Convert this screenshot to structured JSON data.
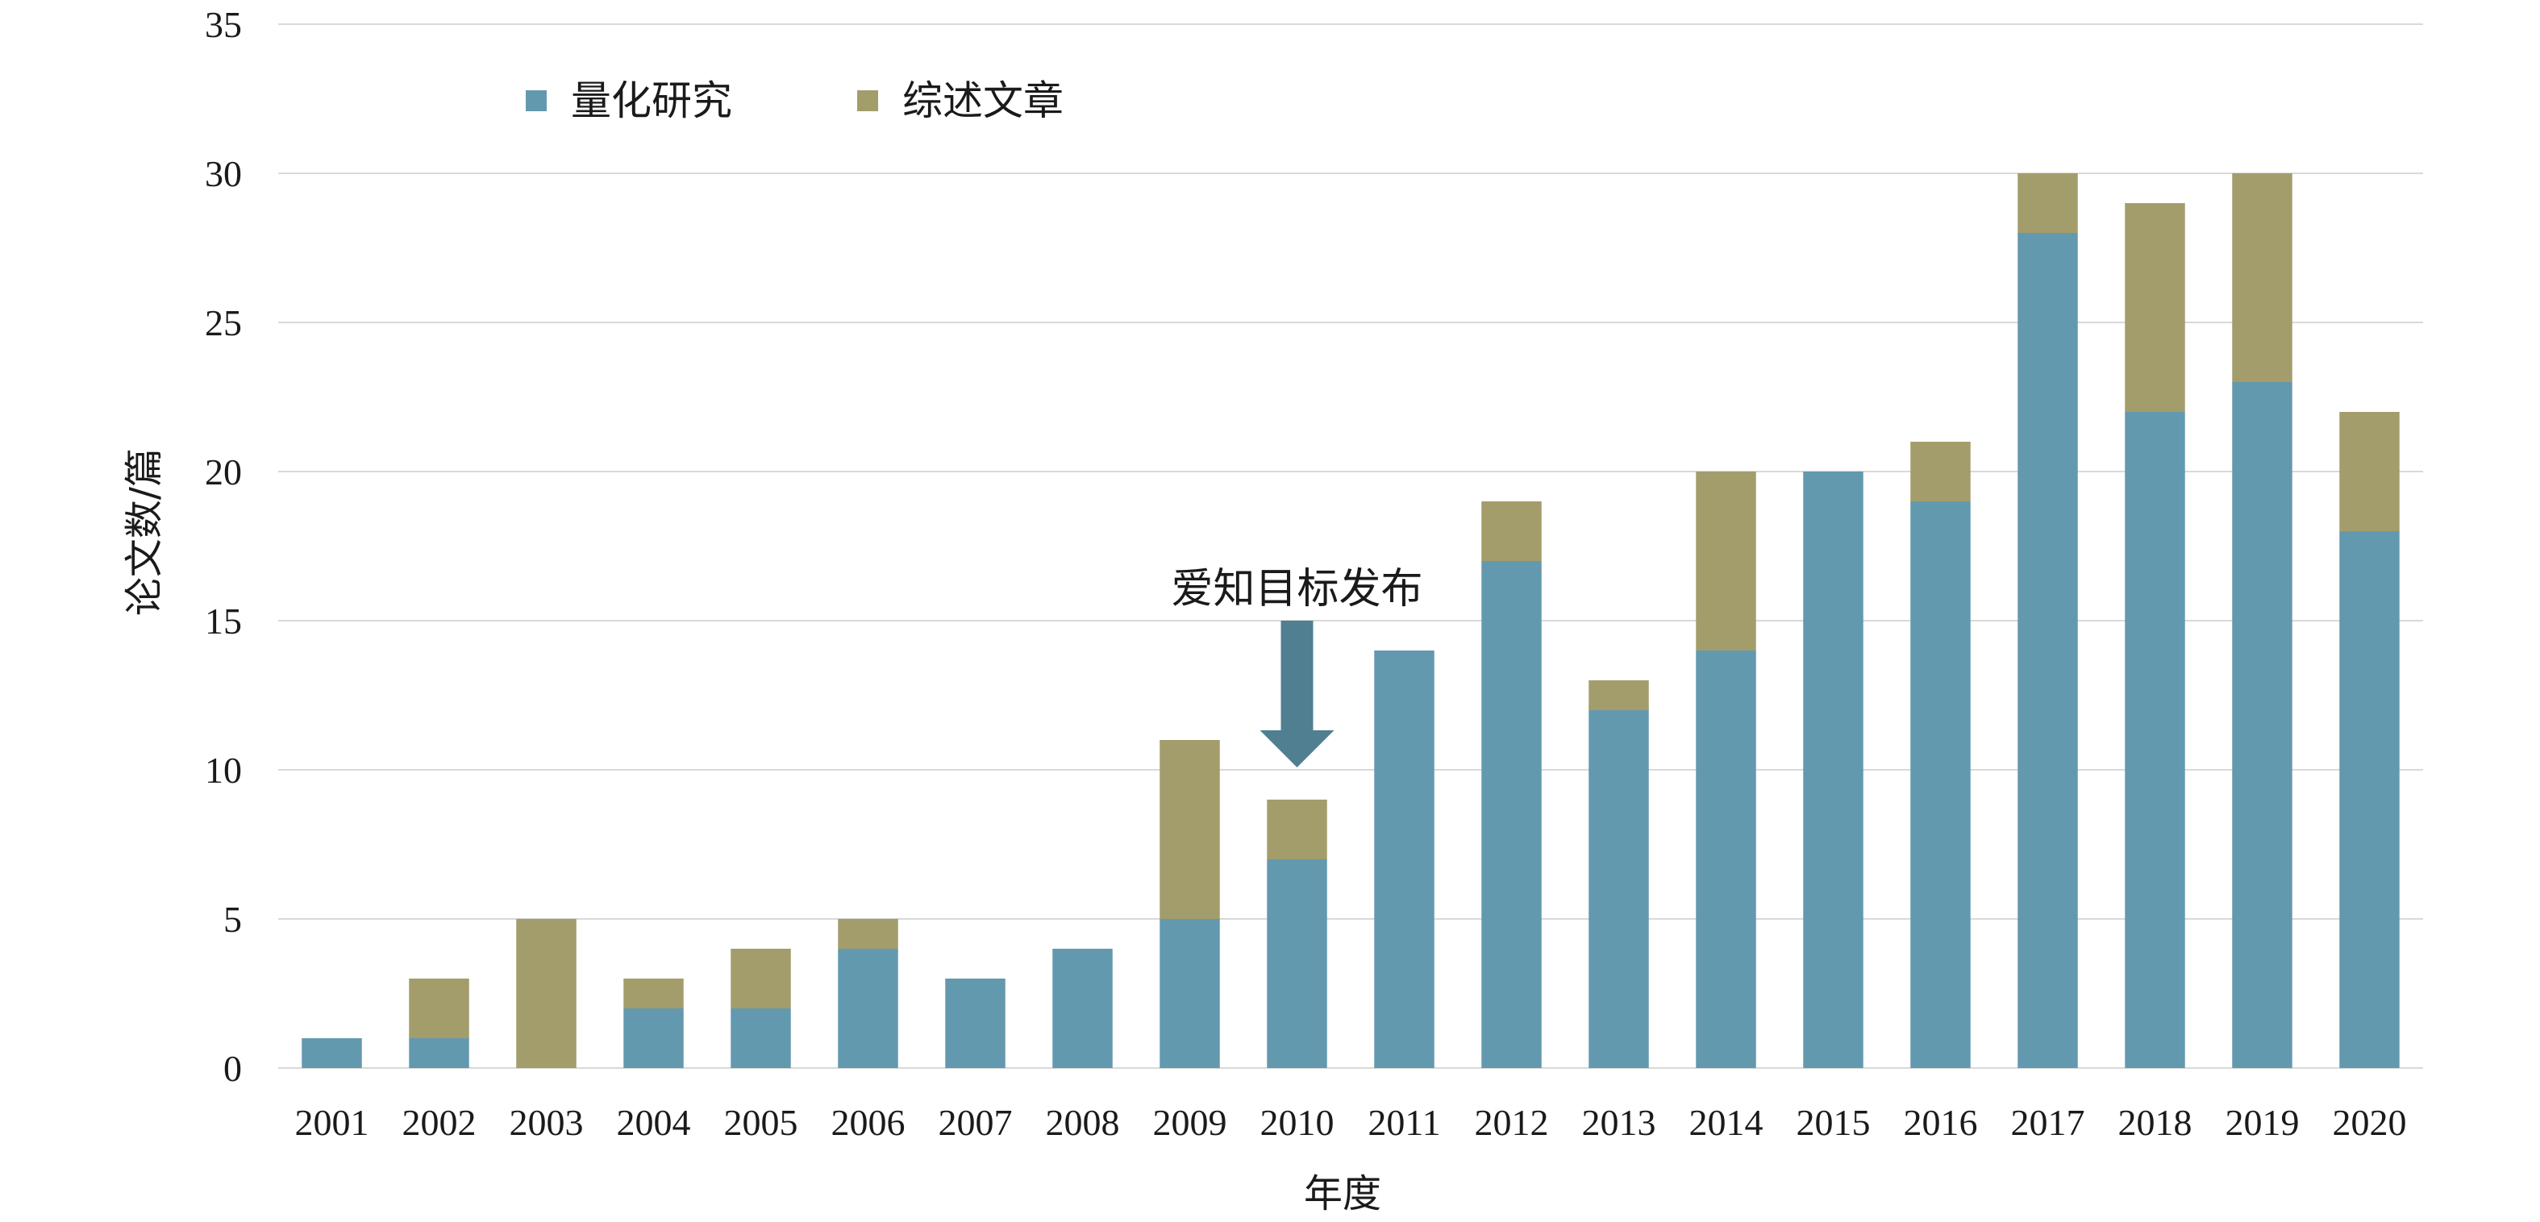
{
  "chart_data": {
    "type": "bar",
    "stacked": true,
    "categories": [
      "2001",
      "2002",
      "2003",
      "2004",
      "2005",
      "2006",
      "2007",
      "2008",
      "2009",
      "2010",
      "2011",
      "2012",
      "2013",
      "2014",
      "2015",
      "2016",
      "2017",
      "2018",
      "2019",
      "2020"
    ],
    "series": [
      {
        "name": "量化研究",
        "color": "#6399AE",
        "values": [
          1,
          1,
          0,
          2,
          2,
          4,
          3,
          4,
          5,
          7,
          14,
          17,
          12,
          14,
          20,
          19,
          28,
          22,
          23,
          18
        ]
      },
      {
        "name": "综述文章",
        "color": "#A39D6C",
        "values": [
          0,
          2,
          5,
          1,
          2,
          1,
          0,
          0,
          6,
          2,
          0,
          2,
          1,
          6,
          0,
          2,
          2,
          7,
          7,
          4
        ]
      }
    ],
    "title": "",
    "xlabel": "年度",
    "ylabel": "论文数/篇",
    "ylim": [
      0,
      35
    ],
    "yticks": [
      0,
      5,
      10,
      15,
      20,
      25,
      30,
      35
    ],
    "grid": true,
    "legend_position": "top-left",
    "annotation": {
      "text": "爱知目标发布",
      "category": "2010",
      "arrow_color": "#4F7F91"
    }
  }
}
